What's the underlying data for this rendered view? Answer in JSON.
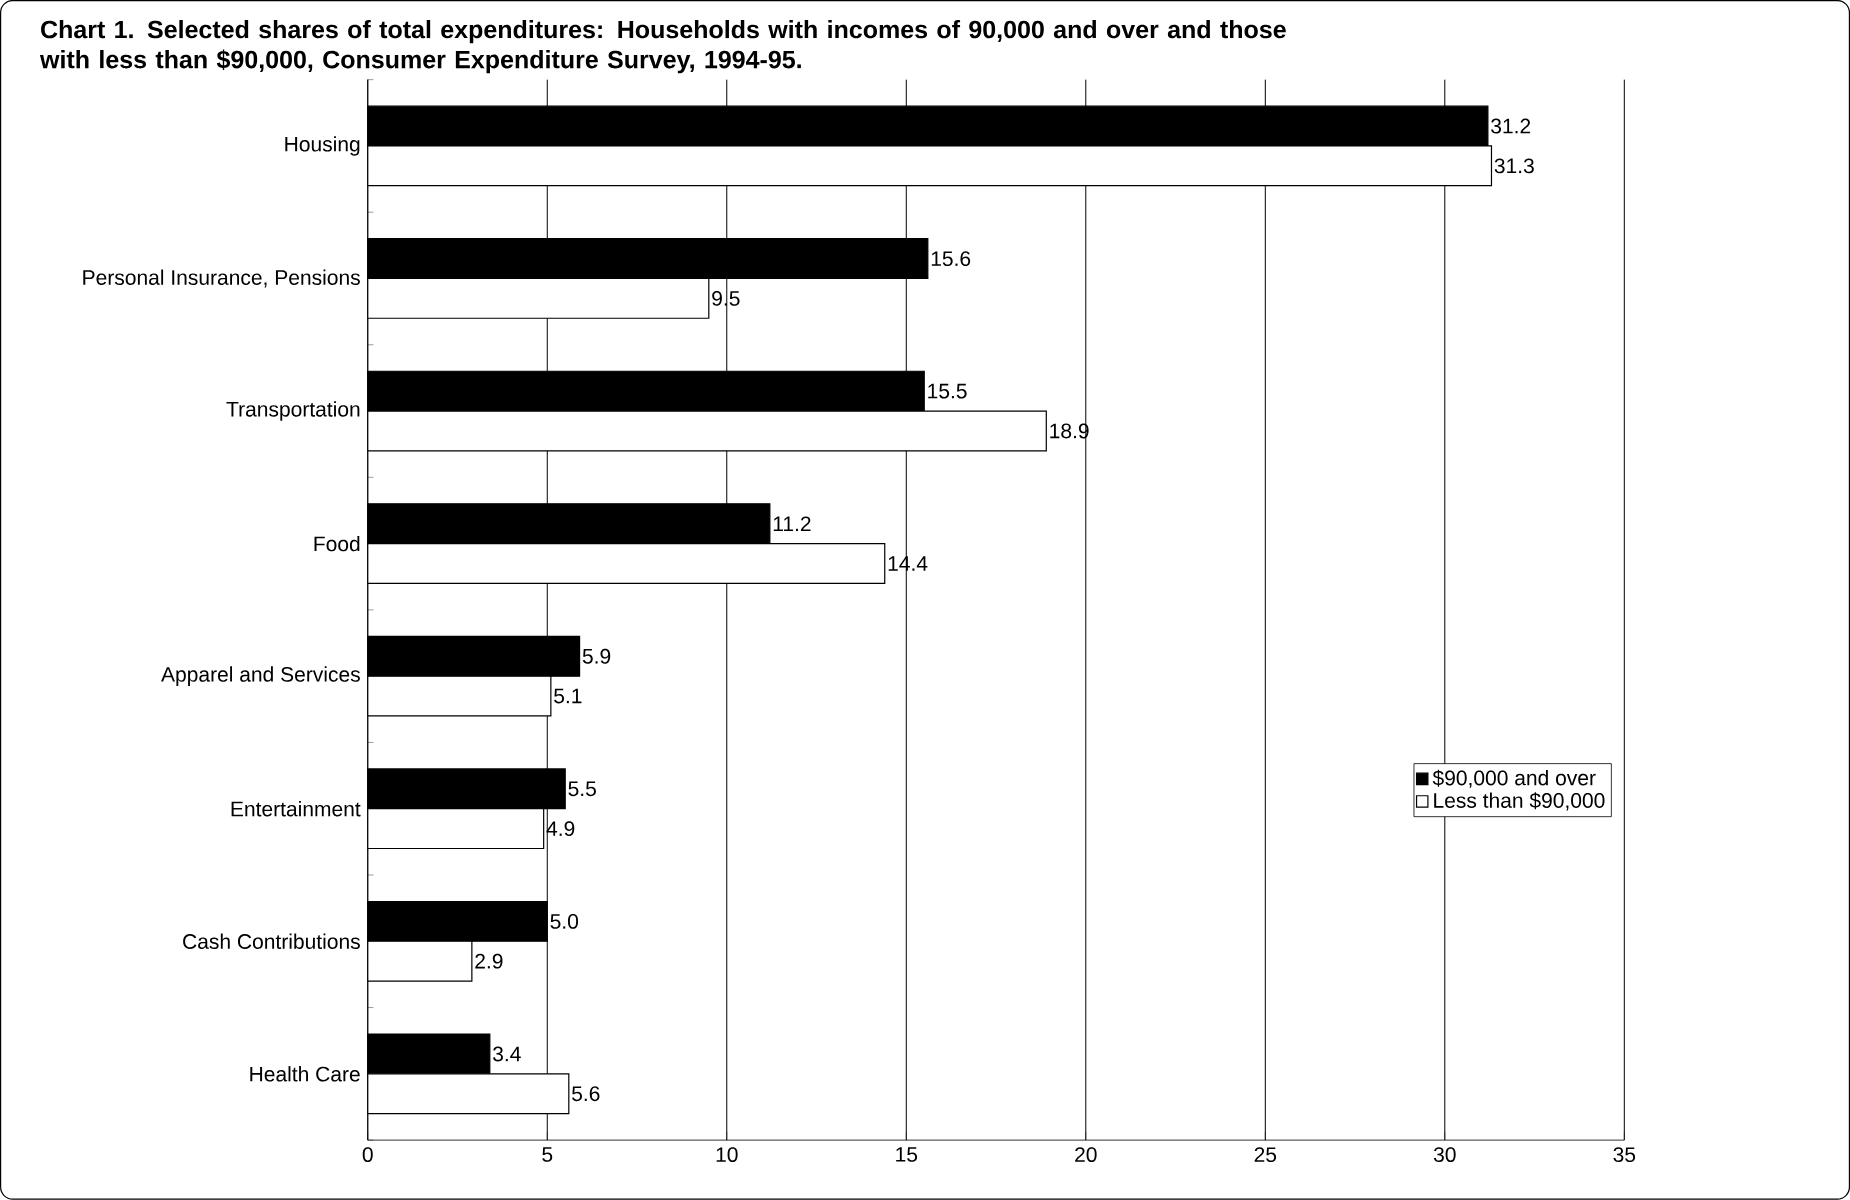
{
  "chart_data": {
    "type": "bar",
    "orientation": "horizontal",
    "title": "Chart 1.  Selected shares of total expenditures:  Households with incomes of  90,000 and over and those with less than $90,000, Consumer Expenditure Survey, 1994-95.",
    "categories": [
      "Housing",
      "Personal Insurance, Pensions",
      "Transportation",
      "Food",
      "Apparel and Services",
      "Entertainment",
      "Cash Contributions",
      "Health Care"
    ],
    "series": [
      {
        "name": "$90,000 and over",
        "color": "#000000",
        "values": [
          31.2,
          15.6,
          15.5,
          11.2,
          5.9,
          5.5,
          5.0,
          3.4
        ],
        "value_labels": [
          "31.2",
          "15.6",
          "15.5",
          "11.2",
          "5.9",
          "5.5",
          "5.0",
          "3.4"
        ]
      },
      {
        "name": "Less than $90,000",
        "color": "#ffffff",
        "values": [
          31.3,
          9.5,
          18.9,
          14.4,
          5.1,
          4.9,
          2.9,
          5.6
        ],
        "value_labels": [
          "31.3",
          "9.5",
          "18.9",
          "14.4",
          "5.1",
          "4.9",
          "2.9",
          "5.6"
        ]
      }
    ],
    "xlim": [
      0,
      35
    ],
    "xticks": [
      0,
      5,
      10,
      15,
      20,
      25,
      30,
      35
    ],
    "grid": "x",
    "legend": "right"
  }
}
